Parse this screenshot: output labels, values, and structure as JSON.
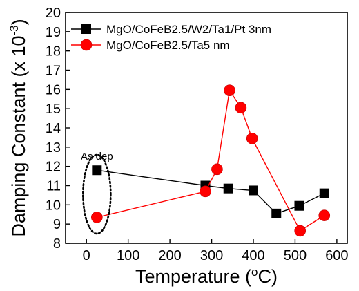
{
  "chart_data": {
    "type": "line",
    "xlabel": "Temperature (",
    "xlabel_sup": "o",
    "xlabel_suffix": "C)",
    "ylabel": "Damping Constant (x 10",
    "ylabel_sup": "-3",
    "ylabel_suffix": ")",
    "xlim": [
      -50,
      625
    ],
    "ylim": [
      8,
      20
    ],
    "xticks": [
      0,
      100,
      200,
      300,
      400,
      500,
      600
    ],
    "yticks": [
      8,
      9,
      10,
      11,
      12,
      13,
      14,
      15,
      16,
      17,
      18,
      19,
      20
    ],
    "grid": false,
    "legend_position": "top-left",
    "series": [
      {
        "name": "MgO/CoFeB2.5/W2/Ta1/Pt 3nm",
        "color": "#000000",
        "marker": "square",
        "x": [
          25,
          285,
          340,
          400,
          455,
          510,
          570
        ],
        "y": [
          11.8,
          11.0,
          10.85,
          10.75,
          9.55,
          9.95,
          10.6
        ]
      },
      {
        "name": "MgO/CoFeB2.5/Ta5 nm",
        "color": "#ff0000",
        "marker": "circle",
        "x": [
          25,
          285,
          313,
          343,
          370,
          397,
          512,
          570
        ],
        "y": [
          9.35,
          10.7,
          11.85,
          15.95,
          15.05,
          13.45,
          8.65,
          9.45
        ]
      }
    ],
    "annotations": [
      {
        "text": "As dep",
        "x": 25,
        "y": 12.35
      }
    ]
  }
}
